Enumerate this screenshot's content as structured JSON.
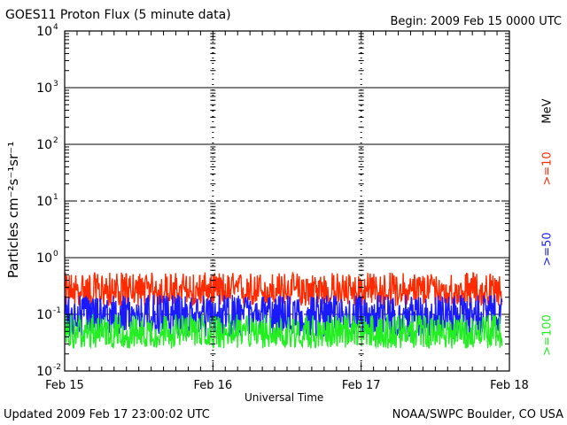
{
  "header": {
    "title": "GOES11 Proton Flux (5 minute data)",
    "begin": "Begin: 2009 Feb 15 0000 UTC"
  },
  "footer": {
    "updated": "Updated 2009 Feb 17 23:00:02 UTC",
    "credit": "NOAA/SWPC Boulder, CO USA"
  },
  "chart_data": {
    "type": "line",
    "title": "GOES11 Proton Flux (5 minute data)",
    "xlabel": "Universal Time",
    "ylabel": "Particles cm⁻²s⁻¹sr⁻¹",
    "yscale": "log",
    "ylim": [
      0.01,
      10000
    ],
    "ytick_exponents": [
      "4",
      "3",
      "2",
      "1",
      "0",
      "-1",
      "-2"
    ],
    "xticks": [
      "Feb 15",
      "Feb 16",
      "Feb 17",
      "Feb 18"
    ],
    "xlim_days": [
      0,
      3
    ],
    "units_label": "MeV",
    "reference_lines": [
      {
        "value": 1000,
        "style": "solid"
      },
      {
        "value": 100,
        "style": "solid"
      },
      {
        "value": 10,
        "style": "dashed"
      },
      {
        "value": 1,
        "style": "solid"
      },
      {
        "value": 0.1,
        "style": "dashed"
      }
    ],
    "series": [
      {
        "name": ">=10",
        "color": "#ff2a00",
        "base": 0.25,
        "min": 0.14,
        "max": 0.55
      },
      {
        "name": ">=50",
        "color": "#1a1aff",
        "base": 0.1,
        "min": 0.04,
        "max": 0.22
      },
      {
        "name": ">=100",
        "color": "#22ee22",
        "base": 0.045,
        "min": 0.025,
        "max": 0.1
      }
    ]
  }
}
